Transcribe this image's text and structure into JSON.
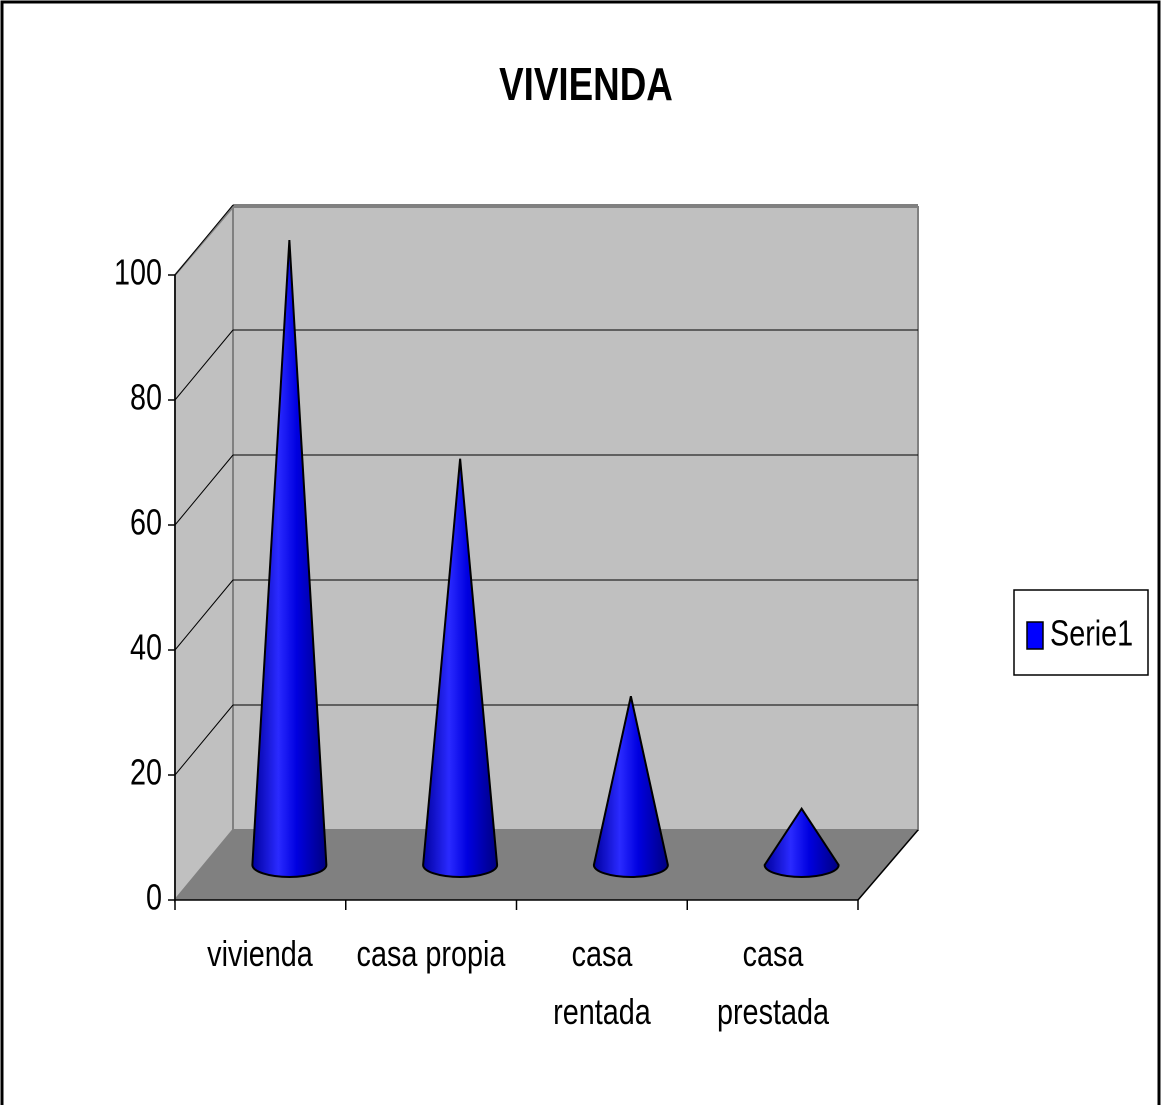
{
  "chart_data": {
    "type": "cone",
    "title": "VIVIENDA",
    "categories": [
      "vivienda",
      "casa propia",
      "casa rentada",
      "casa prestada"
    ],
    "series": [
      {
        "name": "Serie1",
        "color": "#0000ff",
        "values": [
          100,
          65,
          27,
          9
        ]
      }
    ],
    "ylim": [
      0,
      100
    ],
    "yticks": [
      0,
      20,
      40,
      60,
      80,
      100
    ],
    "grid": true,
    "legend": "right"
  }
}
